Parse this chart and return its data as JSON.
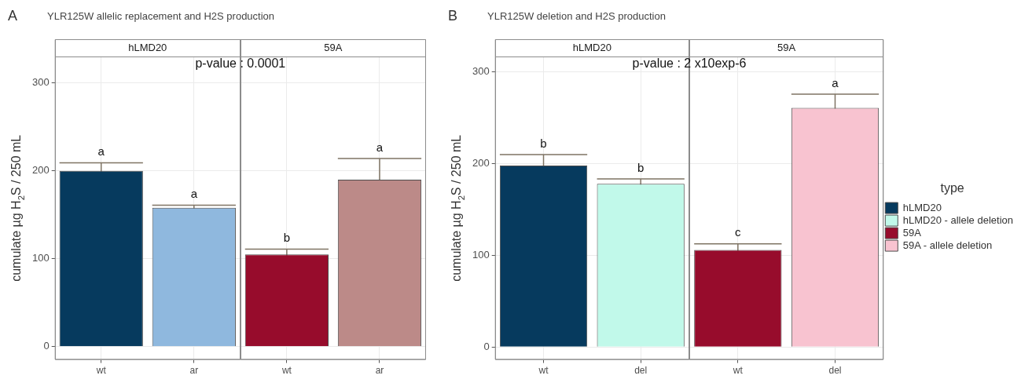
{
  "chart_data": [
    {
      "type": "bar",
      "title": "YLR125W allelic replacement and H2S production",
      "ylabel": "cumulate µg H$_{2}$S / 250 mL",
      "annotations": [
        "A",
        "p-value : 0.0001",
        "hLMD20",
        "59A"
      ],
      "categories": [
        "wt",
        "ar",
        "wt",
        "ar"
      ],
      "values": [
        200,
        158,
        105,
        190
      ],
      "colors": [
        "#063a5e",
        "#8fb8de",
        "#970c2c",
        "#bc8a88"
      ],
      "errors": [
        9,
        3,
        6,
        24
      ],
      "value_labels": [
        "a",
        "a",
        "b",
        "a"
      ],
      "ylim": [
        -15,
        330
      ],
      "yticks": [
        0,
        100,
        200,
        300
      ],
      "grid": true,
      "legend": false
    },
    {
      "type": "bar",
      "title": "YLR125W deletion and H2S production",
      "ylabel": "cumulate µg H$_{2}$S / 250 mL",
      "annotations": [
        "B",
        "p-value : 2 x10exp-6",
        "hLMD20",
        "59A"
      ],
      "categories": [
        "wt",
        "del",
        "wt",
        "del"
      ],
      "legend_title": "type",
      "series": [
        {
          "name": "hLMD20",
          "color": "#063a5e",
          "values": [
            198,
            null,
            null,
            null
          ],
          "errors": [
            12,
            null,
            null,
            null
          ],
          "value_labels": [
            "b",
            null,
            null,
            null
          ]
        },
        {
          "name": "hLMD20 - allele deletion",
          "color": "#c1f9ea",
          "values": [
            null,
            178,
            null,
            null
          ],
          "errors": [
            null,
            5.5,
            null,
            null
          ],
          "value_labels": [
            null,
            "b",
            null,
            null
          ]
        },
        {
          "name": "59A",
          "color": "#970c2c",
          "values": [
            null,
            null,
            106,
            null
          ],
          "errors": [
            null,
            null,
            6.5,
            null
          ],
          "value_labels": [
            null,
            null,
            "c",
            null
          ]
        },
        {
          "name": "59A - allele deletion",
          "color": "#f8c3d0",
          "values": [
            null,
            null,
            null,
            261
          ],
          "errors": [
            null,
            null,
            null,
            15
          ],
          "value_labels": [
            null,
            null,
            null,
            "a"
          ]
        }
      ],
      "ylim": [
        -14,
        317
      ],
      "yticks": [
        0,
        100,
        200,
        300
      ],
      "grid": true,
      "legend": "right"
    }
  ]
}
